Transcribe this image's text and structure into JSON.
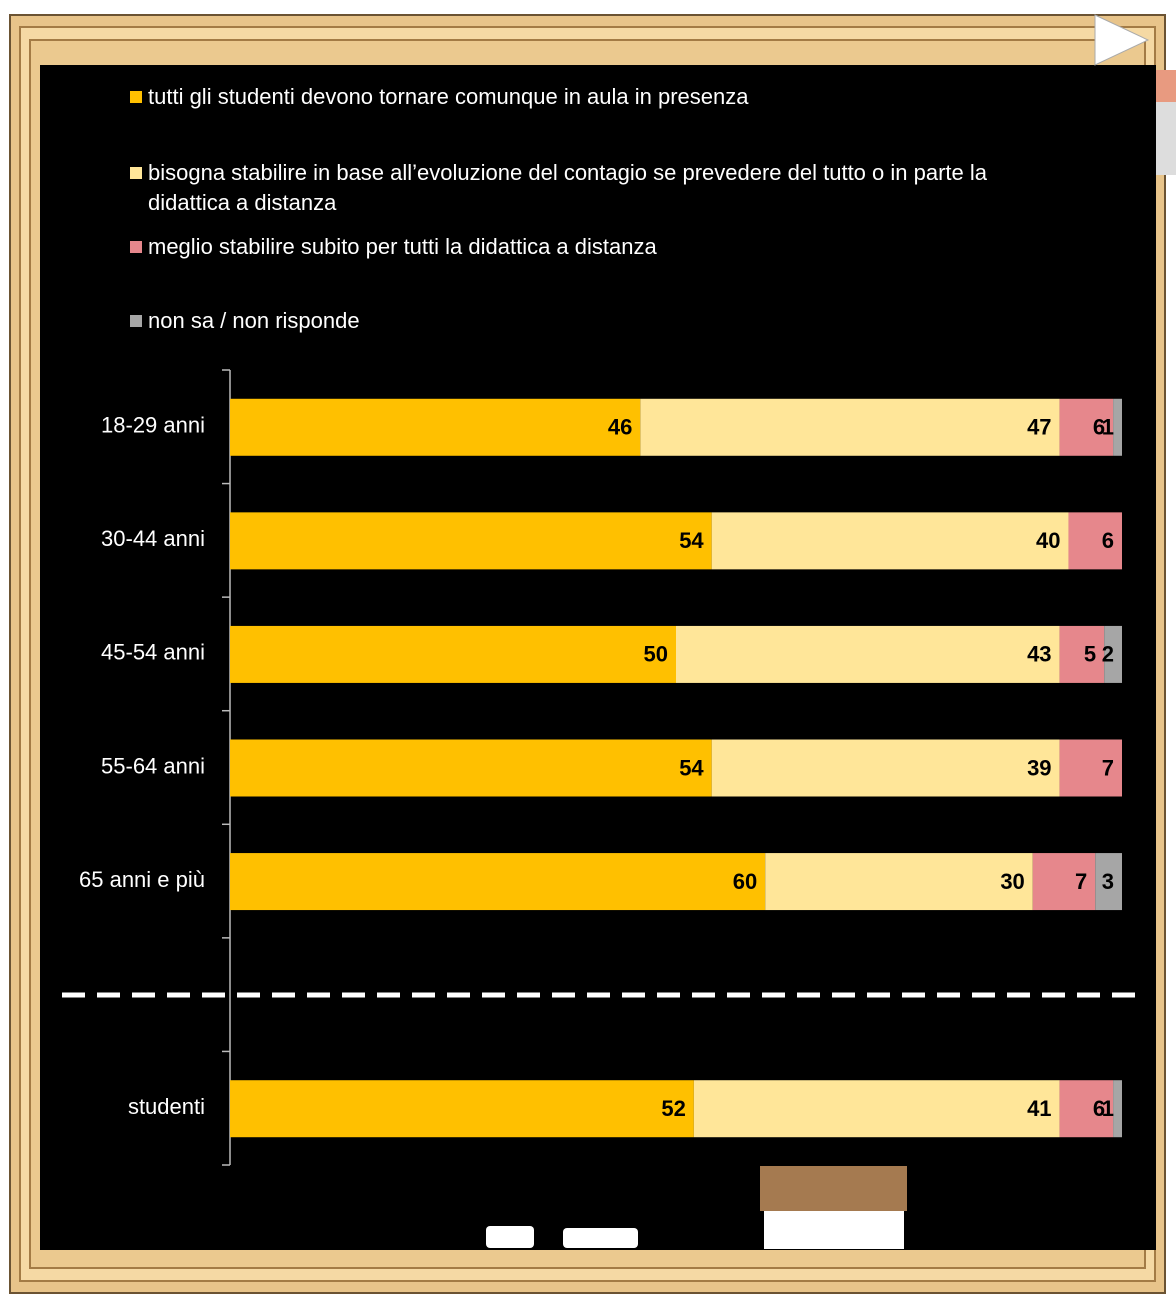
{
  "chart_data": {
    "type": "stacked_bar_horizontal",
    "categories": [
      "18-29 anni",
      "30-44 anni",
      "45-54 anni",
      "55-64 anni",
      "65 anni e più",
      null,
      "studenti"
    ],
    "series": [
      {
        "name": "tutti gli studenti devono tornare comunque in aula in presenza",
        "color": "#FFC000",
        "values": [
          46,
          54,
          50,
          54,
          60,
          null,
          52
        ]
      },
      {
        "name": "bisogna stabilire in base all’evoluzione  del contagio se prevedere  del tutto o in parte la didattica a distanza",
        "color": "#FFE699",
        "values": [
          47,
          40,
          43,
          39,
          30,
          null,
          41
        ]
      },
      {
        "name": "meglio stabilire subito per tutti la didattica a distanza",
        "color": "#E6878C",
        "values": [
          6,
          6,
          5,
          7,
          7,
          null,
          6
        ]
      },
      {
        "name": "non sa / non risponde",
        "color": "#A6A6A6",
        "values": [
          1,
          null,
          2,
          null,
          3,
          null,
          1
        ]
      }
    ],
    "xlim": [
      0,
      100
    ]
  }
}
